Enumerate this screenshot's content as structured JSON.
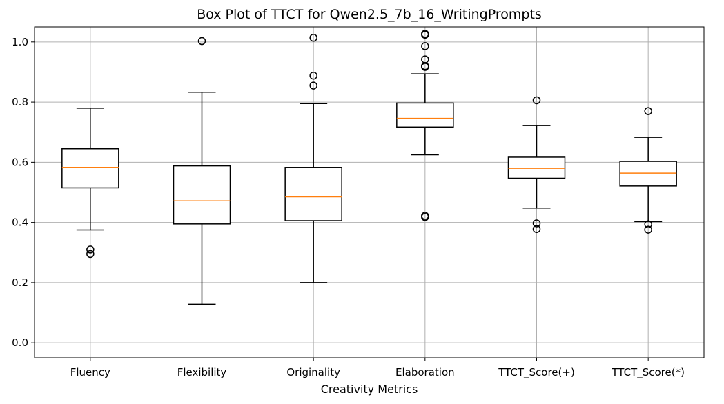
{
  "chart_data": {
    "type": "box",
    "title": "Box Plot of TTCT for Qwen2.5_7b_16_WritingPrompts",
    "xlabel": "Creativity Metrics",
    "ylabel": "",
    "ylim": [
      -0.05,
      1.05
    ],
    "yticks": [
      "0.0",
      "0.2",
      "0.4",
      "0.6",
      "0.8",
      "1.0"
    ],
    "grid": true,
    "colors": {
      "box": "#000000",
      "median": "#ff7f0e",
      "grid": "#b0b0b0"
    },
    "categories": [
      "Fluency",
      "Flexibility",
      "Originality",
      "Elaboration",
      "TTCT_Score(+)",
      "TTCT_Score(*)"
    ],
    "boxes": [
      {
        "whisker_low": 0.375,
        "q1": 0.515,
        "median": 0.583,
        "q3": 0.645,
        "whisker_high": 0.78,
        "outliers": [
          0.31,
          0.295
        ]
      },
      {
        "whisker_low": 0.128,
        "q1": 0.395,
        "median": 0.472,
        "q3": 0.588,
        "whisker_high": 0.833,
        "outliers": [
          1.003
        ]
      },
      {
        "whisker_low": 0.2,
        "q1": 0.406,
        "median": 0.485,
        "q3": 0.583,
        "whisker_high": 0.795,
        "outliers": [
          1.014,
          0.888,
          0.855
        ]
      },
      {
        "whisker_low": 0.625,
        "q1": 0.717,
        "median": 0.746,
        "q3": 0.797,
        "whisker_high": 0.894,
        "outliers": [
          1.027,
          1.024,
          0.986,
          0.942,
          0.92,
          0.917,
          0.422,
          0.418
        ]
      },
      {
        "whisker_low": 0.448,
        "q1": 0.547,
        "median": 0.58,
        "q3": 0.617,
        "whisker_high": 0.722,
        "outliers": [
          0.806,
          0.397,
          0.378
        ]
      },
      {
        "whisker_low": 0.403,
        "q1": 0.521,
        "median": 0.564,
        "q3": 0.603,
        "whisker_high": 0.683,
        "outliers": [
          0.77,
          0.394,
          0.376
        ]
      }
    ]
  }
}
